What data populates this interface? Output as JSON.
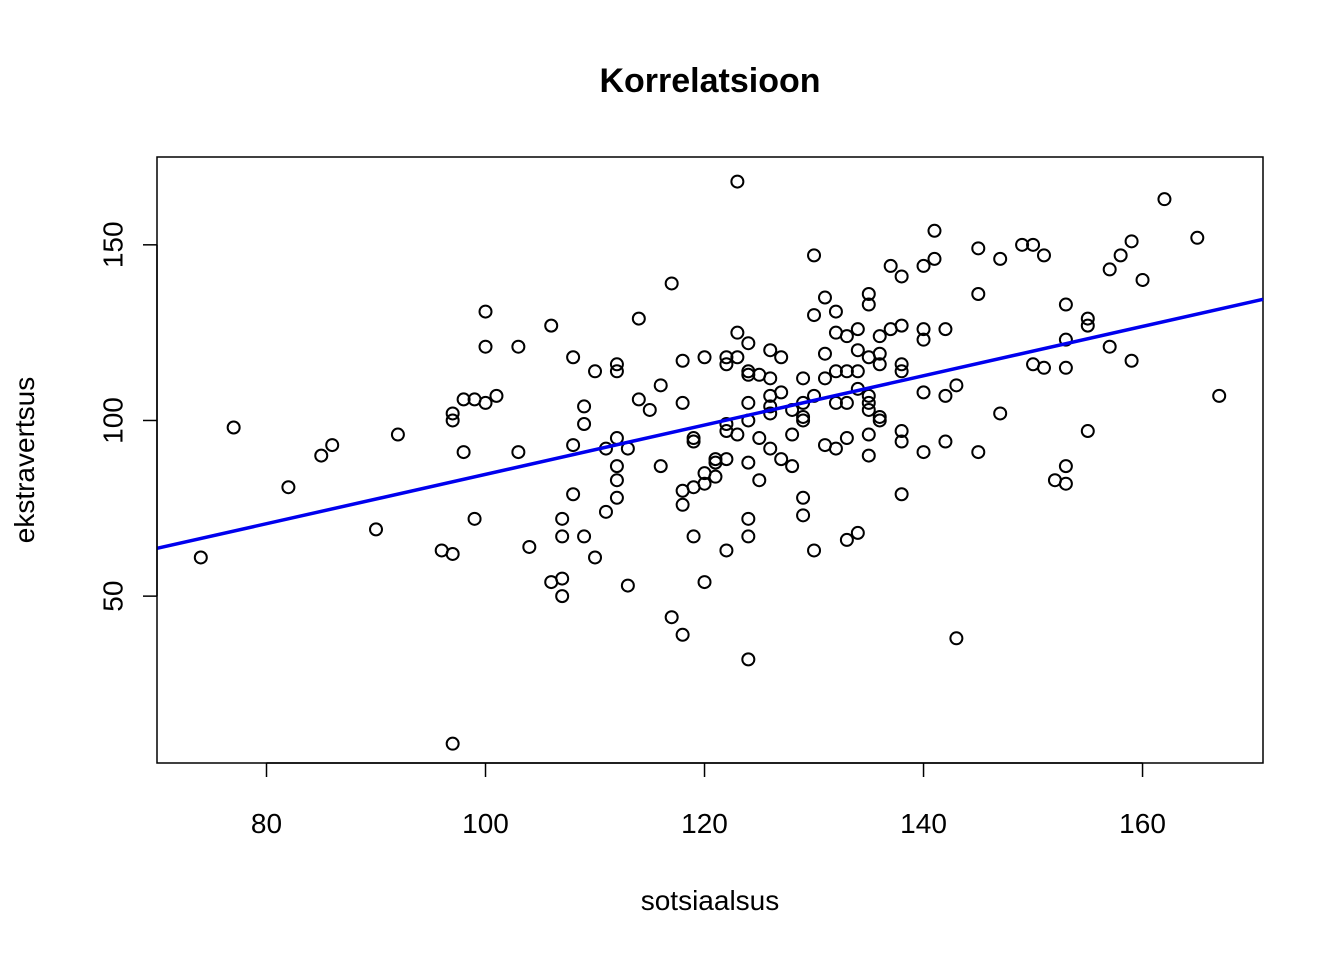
{
  "chart_data": {
    "type": "scatter",
    "title": "Korrelatsioon",
    "xlabel": "sotsiaalsus",
    "ylabel": "ekstravertsus",
    "xlim": [
      70,
      171
    ],
    "ylim": [
      2.5,
      175
    ],
    "x_ticks": [
      80,
      100,
      120,
      140,
      160
    ],
    "y_ticks": [
      50,
      100,
      150
    ],
    "marker": "open-circle",
    "point_color": "#000000",
    "regression_line": {
      "color": "#0000ee",
      "x": [
        70,
        171
      ],
      "y": [
        63.6,
        134.5
      ]
    },
    "grid": false,
    "legend": "none",
    "points": [
      [
        74,
        61
      ],
      [
        77,
        98
      ],
      [
        82,
        81
      ],
      [
        85,
        90
      ],
      [
        86,
        93
      ],
      [
        90,
        69
      ],
      [
        92,
        96
      ],
      [
        96,
        63
      ],
      [
        97,
        62
      ],
      [
        97,
        100
      ],
      [
        97,
        102
      ],
      [
        97,
        8
      ],
      [
        98,
        106
      ],
      [
        98,
        91
      ],
      [
        99,
        106
      ],
      [
        99,
        72
      ],
      [
        100,
        131
      ],
      [
        100,
        121
      ],
      [
        100,
        105
      ],
      [
        101,
        107
      ],
      [
        103,
        121
      ],
      [
        103,
        91
      ],
      [
        104,
        64
      ],
      [
        106,
        127
      ],
      [
        106,
        54
      ],
      [
        107,
        72
      ],
      [
        107,
        67
      ],
      [
        107,
        55
      ],
      [
        107,
        50
      ],
      [
        108,
        118
      ],
      [
        108,
        93
      ],
      [
        108,
        79
      ],
      [
        109,
        104
      ],
      [
        109,
        99
      ],
      [
        109,
        67
      ],
      [
        110,
        114
      ],
      [
        110,
        61
      ],
      [
        111,
        92
      ],
      [
        111,
        74
      ],
      [
        112,
        116
      ],
      [
        112,
        114
      ],
      [
        112,
        95
      ],
      [
        112,
        87
      ],
      [
        112,
        83
      ],
      [
        112,
        78
      ],
      [
        113,
        92
      ],
      [
        113,
        53
      ],
      [
        114,
        129
      ],
      [
        114,
        106
      ],
      [
        115,
        103
      ],
      [
        116,
        110
      ],
      [
        116,
        87
      ],
      [
        117,
        139
      ],
      [
        117,
        44
      ],
      [
        118,
        117
      ],
      [
        118,
        105
      ],
      [
        118,
        80
      ],
      [
        118,
        76
      ],
      [
        118,
        39
      ],
      [
        119,
        95
      ],
      [
        119,
        94
      ],
      [
        119,
        81
      ],
      [
        119,
        67
      ],
      [
        120,
        118
      ],
      [
        120,
        85
      ],
      [
        120,
        82
      ],
      [
        120,
        54
      ],
      [
        121,
        89
      ],
      [
        121,
        88
      ],
      [
        121,
        84
      ],
      [
        122,
        118
      ],
      [
        122,
        116
      ],
      [
        122,
        99
      ],
      [
        122,
        97
      ],
      [
        122,
        89
      ],
      [
        122,
        63
      ],
      [
        123,
        168
      ],
      [
        123,
        125
      ],
      [
        123,
        118
      ],
      [
        123,
        96
      ],
      [
        124,
        122
      ],
      [
        124,
        114
      ],
      [
        124,
        113
      ],
      [
        124,
        105
      ],
      [
        124,
        100
      ],
      [
        124,
        88
      ],
      [
        124,
        72
      ],
      [
        124,
        67
      ],
      [
        124,
        32
      ],
      [
        125,
        113
      ],
      [
        125,
        95
      ],
      [
        125,
        83
      ],
      [
        126,
        120
      ],
      [
        126,
        112
      ],
      [
        126,
        107
      ],
      [
        126,
        104
      ],
      [
        126,
        102
      ],
      [
        126,
        92
      ],
      [
        127,
        118
      ],
      [
        127,
        108
      ],
      [
        127,
        89
      ],
      [
        128,
        103
      ],
      [
        128,
        96
      ],
      [
        128,
        87
      ],
      [
        129,
        112
      ],
      [
        129,
        105
      ],
      [
        129,
        101
      ],
      [
        129,
        100
      ],
      [
        129,
        78
      ],
      [
        129,
        73
      ],
      [
        130,
        147
      ],
      [
        130,
        130
      ],
      [
        130,
        107
      ],
      [
        130,
        63
      ],
      [
        131,
        135
      ],
      [
        131,
        119
      ],
      [
        131,
        112
      ],
      [
        131,
        93
      ],
      [
        132,
        131
      ],
      [
        132,
        125
      ],
      [
        132,
        114
      ],
      [
        132,
        105
      ],
      [
        132,
        92
      ],
      [
        133,
        124
      ],
      [
        133,
        114
      ],
      [
        133,
        105
      ],
      [
        133,
        95
      ],
      [
        133,
        66
      ],
      [
        134,
        126
      ],
      [
        134,
        120
      ],
      [
        134,
        114
      ],
      [
        134,
        109
      ],
      [
        134,
        68
      ],
      [
        135,
        136
      ],
      [
        135,
        133
      ],
      [
        135,
        118
      ],
      [
        135,
        107
      ],
      [
        135,
        105
      ],
      [
        135,
        103
      ],
      [
        135,
        96
      ],
      [
        135,
        90
      ],
      [
        136,
        124
      ],
      [
        136,
        119
      ],
      [
        136,
        116
      ],
      [
        136,
        101
      ],
      [
        136,
        100
      ],
      [
        137,
        144
      ],
      [
        137,
        126
      ],
      [
        138,
        141
      ],
      [
        138,
        127
      ],
      [
        138,
        116
      ],
      [
        138,
        114
      ],
      [
        138,
        97
      ],
      [
        138,
        94
      ],
      [
        138,
        79
      ],
      [
        140,
        144
      ],
      [
        140,
        126
      ],
      [
        140,
        123
      ],
      [
        140,
        108
      ],
      [
        140,
        91
      ],
      [
        141,
        154
      ],
      [
        141,
        146
      ],
      [
        142,
        126
      ],
      [
        142,
        107
      ],
      [
        142,
        94
      ],
      [
        143,
        110
      ],
      [
        143,
        38
      ],
      [
        145,
        149
      ],
      [
        145,
        136
      ],
      [
        145,
        91
      ],
      [
        147,
        146
      ],
      [
        147,
        102
      ],
      [
        149,
        150
      ],
      [
        150,
        150
      ],
      [
        150,
        116
      ],
      [
        151,
        147
      ],
      [
        151,
        115
      ],
      [
        152,
        83
      ],
      [
        153,
        133
      ],
      [
        153,
        123
      ],
      [
        153,
        115
      ],
      [
        153,
        87
      ],
      [
        153,
        82
      ],
      [
        155,
        129
      ],
      [
        155,
        127
      ],
      [
        155,
        97
      ],
      [
        157,
        143
      ],
      [
        157,
        121
      ],
      [
        158,
        147
      ],
      [
        159,
        151
      ],
      [
        159,
        117
      ],
      [
        160,
        140
      ],
      [
        162,
        163
      ],
      [
        165,
        152
      ],
      [
        167,
        107
      ]
    ]
  }
}
